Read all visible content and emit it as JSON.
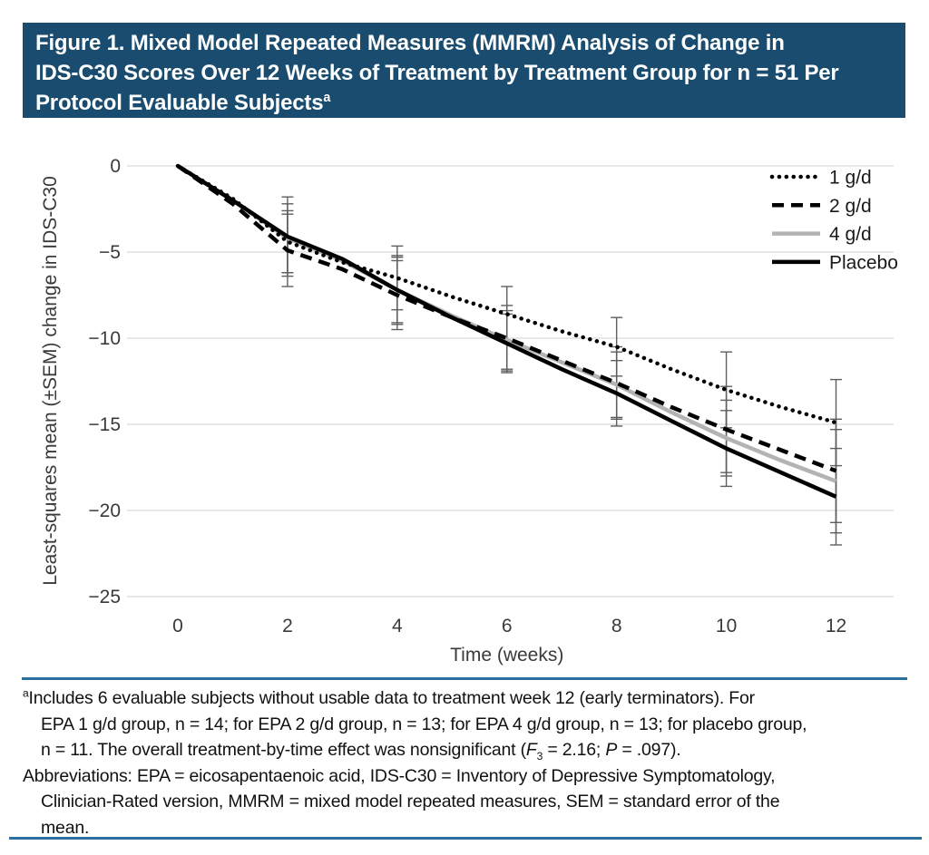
{
  "colors": {
    "header_bg": "#1a4c70",
    "header_text": "#ffffff",
    "rule_blue": "#2d6f9f",
    "grid": "#d9d9d9",
    "error_bar": "#5f5f5f",
    "axis_text": "#3a3a3a",
    "series_gray": "#b3b3b3",
    "series_black": "#000000"
  },
  "header": {
    "line1": "Figure 1. Mixed Model Repeated Measures (MMRM) Analysis of Change in",
    "line2": "IDS-C30 Scores Over 12 Weeks of Treatment by Treatment Group for n = 51 Per",
    "line3": "Protocol Evaluable Subjects",
    "superscript": "a"
  },
  "chart_data": {
    "type": "line",
    "title": "",
    "xlabel": "Time (weeks)",
    "ylabel": "Least-squares mean (±SEM) change in IDS-C30",
    "x": [
      0,
      1,
      2,
      3,
      4,
      5,
      6,
      7,
      8,
      9,
      10,
      11,
      12
    ],
    "xtick_values": [
      0,
      2,
      4,
      6,
      8,
      10,
      12
    ],
    "xtick_labels": [
      "0",
      "2",
      "4",
      "6",
      "8",
      "10",
      "12"
    ],
    "ytick_values": [
      0,
      -5,
      -10,
      -15,
      -20,
      -25
    ],
    "ytick_labels": [
      "0",
      "−5",
      "−10",
      "−15",
      "−20",
      "−25"
    ],
    "ylim": [
      -25,
      0
    ],
    "xlim": [
      -0.9,
      13
    ],
    "grid": "horizontal",
    "legend_position": "top-right",
    "error_bar_weeks": [
      2,
      4,
      6,
      8,
      10,
      12
    ],
    "draw_order": [
      2,
      0,
      1,
      3
    ],
    "series": [
      {
        "name": "1 g/d",
        "style": "dotted",
        "color": "#000000",
        "values": [
          0,
          -1.9,
          -4.4,
          -5.6,
          -6.5,
          -7.6,
          -8.6,
          -9.6,
          -10.5,
          -11.8,
          -13.0,
          -14.0,
          -14.9
        ],
        "sem": [
          1.8,
          1.85,
          1.6,
          1.7,
          2.2,
          2.5
        ]
      },
      {
        "name": "2 g/d",
        "style": "dashed",
        "color": "#000000",
        "values": [
          0,
          -2.2,
          -4.9,
          -6.0,
          -7.5,
          -8.8,
          -10.0,
          -11.3,
          -12.6,
          -14.0,
          -15.3,
          -16.5,
          -17.7
        ],
        "sem": [
          2.1,
          2.0,
          1.9,
          2.1,
          2.5,
          3.0
        ]
      },
      {
        "name": "4 g/d",
        "style": "solid",
        "color": "#b3b3b3",
        "values": [
          0,
          -2.0,
          -4.2,
          -5.5,
          -7.2,
          -8.7,
          -10.1,
          -11.4,
          -12.7,
          -14.3,
          -15.8,
          -17.1,
          -18.3
        ],
        "sem": [
          2.0,
          1.9,
          1.7,
          1.9,
          2.2,
          3.0
        ]
      },
      {
        "name": "Placebo",
        "style": "solid",
        "color": "#000000",
        "values": [
          0,
          -2.0,
          -4.1,
          -5.4,
          -7.2,
          -8.8,
          -10.3,
          -11.8,
          -13.2,
          -14.8,
          -16.4,
          -17.8,
          -19.2
        ],
        "sem": [
          2.3,
          2.0,
          1.7,
          1.9,
          2.2,
          2.8
        ]
      }
    ]
  },
  "footnote": {
    "superscript": "a",
    "line1": "Includes 6 evaluable subjects without usable data to treatment week 12 (early terminators). For",
    "line2": "EPA 1 g/d group, n = 14; for EPA 2 g/d group, n = 13; for EPA 4 g/d group, n = 13; for placebo group,",
    "line3_pre": "n = 11. The overall treatment-by-time effect was nonsignificant (",
    "line3_f": "F",
    "line3_fsub": "3",
    "line3_mid": " = 2.16; ",
    "line3_p": "P",
    "line3_tail": " = .097).",
    "abbrev_line1": "Abbreviations: EPA = eicosapentaenoic acid, IDS-C30 = Inventory of Depressive Symptomatology,",
    "abbrev_line2": "Clinician-Rated version, MMRM = mixed model repeated measures, SEM = standard error of the",
    "abbrev_line3": "mean."
  }
}
